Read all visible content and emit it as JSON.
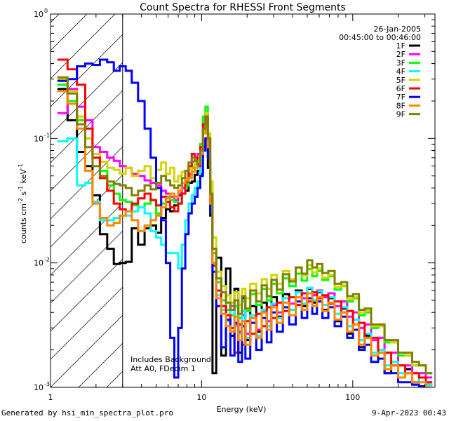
{
  "chart_data": {
    "type": "line",
    "title": "Count Spectra for RHESSI Front Segments",
    "xlabel": "Energy (keV)",
    "ylabel_parts": [
      "counts cm",
      "-2",
      " s",
      "-1",
      " keV",
      "-1"
    ],
    "xscale": "log",
    "yscale": "log",
    "xlim": [
      1,
      350
    ],
    "ylim": [
      0.001,
      1
    ],
    "x_ticks": [
      {
        "value": 1,
        "label": "1"
      },
      {
        "value": 10,
        "label": "10"
      },
      {
        "value": 100,
        "label": "100"
      }
    ],
    "y_ticks": [
      {
        "value": 0.001,
        "mantissa": "10",
        "exp": "-3"
      },
      {
        "value": 0.01,
        "mantissa": "10",
        "exp": "-2"
      },
      {
        "value": 0.1,
        "mantissa": "10",
        "exp": "-1"
      },
      {
        "value": 1,
        "mantissa": "10",
        "exp": "0"
      }
    ],
    "date": "26-Jan-2005",
    "time_range": "00:45:00 to 00:46:00",
    "annotations": [
      "Includes Background",
      "Att A0, FDecim 1"
    ],
    "excluded_region_max_kev": 3.0,
    "x": [
      1.2,
      1.4,
      1.6,
      1.8,
      2.0,
      2.25,
      2.5,
      2.75,
      3.0,
      3.3,
      3.6,
      4.0,
      4.4,
      4.8,
      5.2,
      5.6,
      6.0,
      6.4,
      6.8,
      7.2,
      7.6,
      8.0,
      8.4,
      8.8,
      9.2,
      9.6,
      10.0,
      10.4,
      10.8,
      11.2,
      11.6,
      12.0,
      13,
      14,
      15,
      16,
      17,
      18,
      19,
      20,
      22,
      24,
      26,
      28,
      30,
      33,
      36,
      40,
      44,
      48,
      52,
      56,
      60,
      66,
      72,
      80,
      88,
      96,
      105,
      115,
      125,
      140,
      155,
      170,
      190,
      210,
      235,
      260,
      290,
      320
    ],
    "series": [
      {
        "name": "1F",
        "color": "#000000",
        "values": [
          0.25,
          0.14,
          0.078,
          0.06,
          0.035,
          0.017,
          0.013,
          0.0098,
          0.01,
          0.0102,
          0.019,
          0.014,
          0.019,
          0.02,
          0.0175,
          0.023,
          0.027,
          0.026,
          0.029,
          0.035,
          0.04,
          0.038,
          0.044,
          0.045,
          0.051,
          0.055,
          0.052,
          0.085,
          0.1,
          0.058,
          0.024,
          0.0013,
          0.011,
          0.0018,
          0.009,
          0.0026,
          0.0062,
          0.0019,
          0.0052,
          0.0024,
          0.0045,
          0.0028,
          0.0048,
          0.0031,
          0.0053,
          0.0037,
          0.0056,
          0.0042,
          0.006,
          0.0045,
          0.0062,
          0.0048,
          0.0058,
          0.0042,
          0.0052,
          0.0034,
          0.0043,
          0.0027,
          0.0035,
          0.0021,
          0.0026,
          0.0016,
          0.0019,
          0.0013,
          0.0015,
          0.0012,
          0.0014,
          0.0011,
          0.0012,
          0.00105
        ]
      },
      {
        "name": "2F",
        "color": "#ff00ff",
        "values": [
          0.16,
          0.25,
          0.18,
          0.14,
          0.085,
          0.078,
          0.07,
          0.066,
          0.06,
          0.058,
          0.052,
          0.05,
          0.046,
          0.044,
          0.042,
          0.038,
          0.036,
          0.034,
          0.032,
          0.036,
          0.04,
          0.044,
          0.052,
          0.065,
          0.07,
          0.075,
          0.09,
          0.13,
          0.16,
          0.1,
          0.035,
          0.012,
          0.006,
          0.0042,
          0.0035,
          0.0045,
          0.0032,
          0.0028,
          0.0038,
          0.0027,
          0.0036,
          0.0029,
          0.0041,
          0.0034,
          0.0046,
          0.004,
          0.0052,
          0.0047,
          0.0058,
          0.0052,
          0.0063,
          0.0055,
          0.006,
          0.0053,
          0.0057,
          0.0045,
          0.0049,
          0.0037,
          0.004,
          0.003,
          0.0032,
          0.0024,
          0.0025,
          0.0019,
          0.0019,
          0.0015,
          0.0015,
          0.0013,
          0.0013,
          0.0012
        ]
      },
      {
        "name": "3F",
        "color": "#00ff00",
        "values": [
          0.27,
          0.2,
          0.14,
          0.1,
          0.07,
          0.055,
          0.042,
          0.036,
          0.032,
          0.031,
          0.029,
          0.028,
          0.03,
          0.032,
          0.025,
          0.03,
          0.034,
          0.032,
          0.031,
          0.03,
          0.036,
          0.042,
          0.05,
          0.058,
          0.062,
          0.07,
          0.09,
          0.15,
          0.18,
          0.11,
          0.038,
          0.012,
          0.007,
          0.005,
          0.0042,
          0.0038,
          0.0045,
          0.0036,
          0.0049,
          0.0041,
          0.0056,
          0.0046,
          0.0062,
          0.005,
          0.0068,
          0.0057,
          0.0075,
          0.0065,
          0.0082,
          0.0072,
          0.0089,
          0.0078,
          0.0086,
          0.0073,
          0.0078,
          0.0061,
          0.0065,
          0.0049,
          0.0052,
          0.0038,
          0.004,
          0.003,
          0.0031,
          0.0023,
          0.0023,
          0.0018,
          0.0018,
          0.0015,
          0.0015,
          0.0013
        ]
      },
      {
        "name": "4F",
        "color": "#00ffff",
        "values": [
          0.095,
          0.1,
          0.042,
          0.044,
          0.031,
          0.022,
          0.022,
          0.023,
          0.024,
          0.024,
          0.026,
          0.028,
          0.025,
          0.018,
          0.016,
          0.014,
          0.012,
          0.012,
          0.012,
          0.009,
          0.014,
          0.022,
          0.03,
          0.035,
          0.04,
          0.045,
          0.06,
          0.11,
          0.14,
          0.09,
          0.03,
          0.01,
          0.0055,
          0.0042,
          0.0034,
          0.0048,
          0.0031,
          0.0027,
          0.0041,
          0.0025,
          0.0038,
          0.0026,
          0.0042,
          0.0031,
          0.0047,
          0.0036,
          0.0052,
          0.0042,
          0.0058,
          0.0047,
          0.0063,
          0.005,
          0.0059,
          0.0046,
          0.0053,
          0.0039,
          0.0044,
          0.0031,
          0.0035,
          0.0024,
          0.0027,
          0.0019,
          0.002,
          0.0015,
          0.0016,
          0.0013,
          0.0013,
          0.0011,
          0.0012,
          0.00105
        ]
      },
      {
        "name": "5F",
        "color": "#d4d400",
        "values": [
          0.3,
          0.24,
          0.15,
          0.1,
          0.075,
          0.065,
          0.058,
          0.056,
          0.052,
          0.058,
          0.05,
          0.055,
          0.06,
          0.048,
          0.056,
          0.064,
          0.052,
          0.058,
          0.045,
          0.05,
          0.054,
          0.048,
          0.056,
          0.06,
          0.064,
          0.07,
          0.085,
          0.12,
          0.16,
          0.11,
          0.045,
          0.016,
          0.0085,
          0.0065,
          0.0055,
          0.0048,
          0.0058,
          0.0046,
          0.0062,
          0.0052,
          0.0068,
          0.0057,
          0.0074,
          0.0062,
          0.008,
          0.0068,
          0.0086,
          0.0074,
          0.0091,
          0.0079,
          0.0096,
          0.0084,
          0.009,
          0.0076,
          0.008,
          0.0064,
          0.0066,
          0.0051,
          0.0053,
          0.004,
          0.0041,
          0.0031,
          0.0031,
          0.0024,
          0.0023,
          0.0019,
          0.0018,
          0.0015,
          0.0015,
          0.0013
        ]
      },
      {
        "name": "6F",
        "color": "#ff0000",
        "values": [
          0.43,
          0.36,
          0.27,
          0.12,
          0.07,
          0.048,
          0.038,
          0.03,
          0.027,
          0.026,
          0.03,
          0.033,
          0.036,
          0.032,
          0.029,
          0.034,
          0.031,
          0.028,
          0.026,
          0.03,
          0.036,
          0.045,
          0.06,
          0.075,
          0.07,
          0.06,
          0.085,
          0.13,
          0.15,
          0.1,
          0.032,
          0.0095,
          0.006,
          0.0045,
          0.0038,
          0.003,
          0.0019,
          0.0032,
          0.0022,
          0.0034,
          0.0027,
          0.0039,
          0.0031,
          0.0044,
          0.0036,
          0.0048,
          0.0041,
          0.0053,
          0.0046,
          0.0057,
          0.0049,
          0.0058,
          0.0052,
          0.0055,
          0.0047,
          0.0049,
          0.004,
          0.0041,
          0.0032,
          0.0033,
          0.0025,
          0.0025,
          0.0019,
          0.0019,
          0.0015,
          0.0015,
          0.0013,
          0.0013,
          0.0012,
          0.0011
        ]
      },
      {
        "name": "7F",
        "color": "#0000ff",
        "values": [
          0.29,
          0.3,
          0.38,
          0.4,
          0.39,
          0.43,
          0.41,
          0.35,
          0.38,
          0.35,
          0.28,
          0.2,
          0.12,
          0.07,
          0.04,
          0.022,
          0.01,
          0.0025,
          0.0012,
          0.003,
          0.009,
          0.017,
          0.025,
          0.03,
          0.034,
          0.04,
          0.05,
          0.08,
          0.1,
          0.07,
          0.025,
          0.0085,
          0.0045,
          0.0021,
          0.0035,
          0.0018,
          0.0033,
          0.0016,
          0.0031,
          0.0017,
          0.0033,
          0.002,
          0.0036,
          0.0023,
          0.004,
          0.0028,
          0.0044,
          0.0032,
          0.0049,
          0.0036,
          0.0052,
          0.0039,
          0.0049,
          0.0036,
          0.0044,
          0.0031,
          0.0037,
          0.0025,
          0.0029,
          0.002,
          0.0022,
          0.0016,
          0.0017,
          0.0013,
          0.0013,
          0.0011,
          0.0011,
          0.00105,
          0.00102,
          0.001
        ]
      },
      {
        "name": "8F",
        "color": "#ff8800",
        "values": [
          0.24,
          0.19,
          0.12,
          0.055,
          0.03,
          0.023,
          0.02,
          0.021,
          0.024,
          0.026,
          0.022,
          0.018,
          0.02,
          0.022,
          0.024,
          0.028,
          0.033,
          0.036,
          0.034,
          0.038,
          0.044,
          0.046,
          0.048,
          0.054,
          0.058,
          0.062,
          0.075,
          0.11,
          0.13,
          0.085,
          0.03,
          0.01,
          0.0052,
          0.0039,
          0.0031,
          0.0028,
          0.0037,
          0.0024,
          0.0034,
          0.0022,
          0.0036,
          0.0025,
          0.004,
          0.0029,
          0.0044,
          0.0033,
          0.0048,
          0.0038,
          0.0053,
          0.0042,
          0.0057,
          0.0045,
          0.0053,
          0.0041,
          0.0048,
          0.0035,
          0.004,
          0.0028,
          0.0032,
          0.0022,
          0.0025,
          0.0018,
          0.0019,
          0.0014,
          0.0015,
          0.0012,
          0.0013,
          0.0011,
          0.0011,
          0.001
        ]
      },
      {
        "name": "9F",
        "color": "#808000",
        "values": [
          0.31,
          0.23,
          0.13,
          0.085,
          0.06,
          0.05,
          0.045,
          0.043,
          0.042,
          0.04,
          0.035,
          0.038,
          0.042,
          0.039,
          0.044,
          0.05,
          0.046,
          0.042,
          0.04,
          0.042,
          0.048,
          0.055,
          0.064,
          0.07,
          0.066,
          0.062,
          0.08,
          0.12,
          0.15,
          0.1,
          0.036,
          0.013,
          0.0075,
          0.0058,
          0.0048,
          0.0042,
          0.005,
          0.0039,
          0.0054,
          0.0043,
          0.006,
          0.0049,
          0.0066,
          0.0054,
          0.0073,
          0.0061,
          0.0081,
          0.0071,
          0.0092,
          0.0082,
          0.0105,
          0.0092,
          0.0098,
          0.0083,
          0.0086,
          0.0068,
          0.007,
          0.0054,
          0.0056,
          0.0042,
          0.0043,
          0.0032,
          0.0032,
          0.0024,
          0.0024,
          0.0019,
          0.0019,
          0.0016,
          0.0015,
          0.0013
        ]
      }
    ]
  },
  "footer": {
    "left": "Generated by hsi_min_spectra_plot.pro",
    "right": "9-Apr-2023 00:43"
  }
}
